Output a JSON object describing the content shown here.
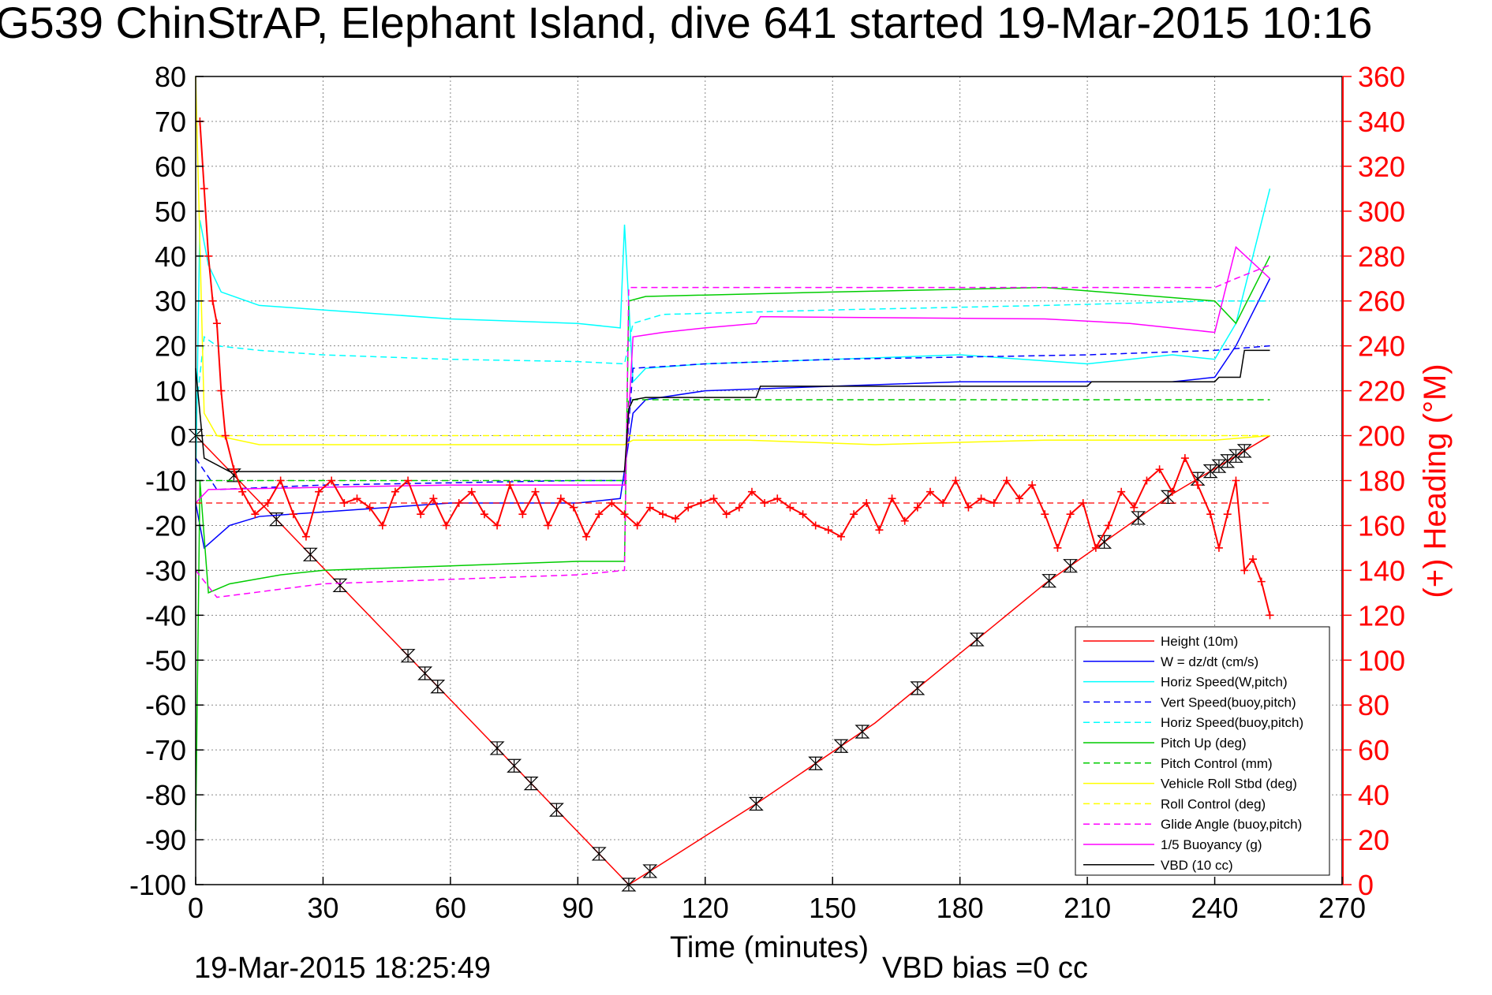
{
  "chart_data": {
    "type": "line",
    "title": "G539 ChinStrAP, Elephant Island, dive 641 started 19-Mar-2015 10:16",
    "xlabel": "Time (minutes)",
    "ylabel_right": "(+) Heading (°M)",
    "footer_left": "19-Mar-2015 18:25:49",
    "footer_right": "VBD bias =0 cc",
    "xlim": [
      0,
      270
    ],
    "ylim_left": [
      -100,
      80
    ],
    "ylim_right": [
      0,
      360
    ],
    "x_ticks": [
      0,
      30,
      60,
      90,
      120,
      150,
      180,
      210,
      240,
      270
    ],
    "y_ticks_left": [
      80,
      70,
      60,
      50,
      40,
      30,
      20,
      10,
      0,
      -10,
      -20,
      -30,
      -40,
      -50,
      -60,
      -70,
      -80,
      -90,
      -100
    ],
    "y_ticks_right": [
      360,
      340,
      320,
      300,
      280,
      260,
      240,
      220,
      200,
      180,
      160,
      140,
      120,
      100,
      80,
      60,
      40,
      20,
      0
    ],
    "grid": true,
    "legend_position": "lower-right",
    "colors": {
      "right_axis": "#ff0000"
    },
    "series": [
      {
        "name": "Height (10m)",
        "color": "#ff0000",
        "dash": false,
        "x": [
          0,
          102,
          112,
          132,
          160,
          200,
          230,
          253
        ],
        "y": [
          0,
          -100,
          -94,
          -82,
          -64,
          -33,
          -13,
          0
        ],
        "markers_x": [
          0,
          9,
          19,
          27,
          34,
          50,
          54,
          57,
          71,
          75,
          79,
          85,
          95,
          102,
          107,
          132,
          146,
          152,
          157,
          170,
          184,
          201,
          206,
          214,
          222,
          229,
          236,
          239,
          241,
          243,
          245,
          247
        ]
      },
      {
        "name": "W = dz/dt (cm/s)",
        "color": "#0000ff",
        "dash": false,
        "x": [
          0,
          2,
          8,
          15,
          30,
          60,
          90,
          100,
          103,
          106,
          120,
          150,
          180,
          210,
          230,
          240,
          245,
          253
        ],
        "y": [
          -15,
          -25,
          -20,
          -18,
          -17,
          -15,
          -15,
          -14,
          5,
          8,
          10,
          11,
          12,
          12,
          12,
          13,
          20,
          35
        ]
      },
      {
        "name": "Horiz Speed(W,pitch)",
        "color": "#00ffff",
        "dash": false,
        "x": [
          0,
          1,
          3,
          6,
          15,
          30,
          60,
          90,
          100,
          101,
          103,
          106,
          120,
          150,
          180,
          210,
          230,
          240,
          245,
          253
        ],
        "y": [
          -10,
          48,
          38,
          32,
          29,
          28,
          26,
          25,
          24,
          47,
          12,
          15,
          16,
          17,
          18,
          16,
          18,
          17,
          25,
          55
        ]
      },
      {
        "name": "Vert Speed(buoy,pitch)",
        "color": "#0000ff",
        "dash": true,
        "x": [
          0,
          5,
          30,
          60,
          90,
          101,
          103,
          120,
          150,
          210,
          240,
          253
        ],
        "y": [
          -5,
          -12,
          -11,
          -10.5,
          -10,
          -10,
          15,
          16,
          17,
          18,
          19,
          20
        ]
      },
      {
        "name": "Horiz Speed(buoy,pitch)",
        "color": "#00ffff",
        "dash": true,
        "x": [
          0,
          2,
          5,
          15,
          30,
          60,
          90,
          101,
          103,
          110,
          150,
          200,
          240,
          253
        ],
        "y": [
          5,
          22,
          20,
          19,
          18,
          17,
          16.5,
          16,
          25,
          27,
          28,
          29,
          30,
          30
        ]
      },
      {
        "name": "Pitch Up (deg)",
        "color": "#00cc00",
        "dash": false,
        "x": [
          0,
          1,
          3,
          8,
          20,
          30,
          60,
          90,
          101,
          102,
          106,
          150,
          200,
          240,
          245,
          253
        ],
        "y": [
          -88,
          -10,
          -35,
          -33,
          -31,
          -30,
          -29,
          -28,
          -28,
          30,
          31,
          32,
          33,
          30,
          25,
          40
        ]
      },
      {
        "name": "Pitch Control (mm)",
        "color": "#00cc00",
        "dash": true,
        "x": [
          0,
          101,
          102,
          253
        ],
        "y": [
          -10,
          -10,
          8,
          8
        ]
      },
      {
        "name": "Vehicle Roll Stbd (deg)",
        "color": "#ffff00",
        "dash": false,
        "x": [
          0,
          2,
          5,
          15,
          30,
          60,
          90,
          101,
          103,
          130,
          160,
          200,
          240,
          253
        ],
        "y": [
          80,
          5,
          0,
          -2,
          -2,
          -2,
          -2,
          -2,
          -1,
          -1,
          -2,
          -1,
          -1,
          0
        ]
      },
      {
        "name": "Roll Control (deg)",
        "color": "#ffff00",
        "dash": true,
        "x": [
          0,
          253
        ],
        "y": [
          0,
          0
        ]
      },
      {
        "name": "Glide Angle (buoy,pitch)",
        "color": "#ff00ff",
        "dash": true,
        "x": [
          0,
          5,
          30,
          60,
          90,
          101,
          102,
          150,
          200,
          240,
          245,
          253
        ],
        "y": [
          -30,
          -36,
          -33,
          -32,
          -31,
          -30,
          33,
          33,
          33,
          33,
          35,
          38
        ]
      },
      {
        "name": "1/5 Buoyancy (g)",
        "color": "#ff00ff",
        "dash": false,
        "x": [
          0,
          3,
          30,
          60,
          90,
          101,
          102,
          103,
          110,
          120,
          132,
          133,
          200,
          220,
          240,
          245,
          253
        ],
        "y": [
          -15,
          -12,
          -11.5,
          -11,
          -11,
          -11,
          5,
          22,
          23,
          24,
          25,
          26.5,
          26,
          25,
          23,
          42,
          35
        ]
      },
      {
        "name": "VBD (10 cc)",
        "color": "#000000",
        "dash": false,
        "x": [
          0,
          2,
          8,
          101,
          102,
          103,
          106,
          132,
          133,
          210,
          211,
          240,
          241,
          246,
          247,
          253
        ],
        "y": [
          15,
          -5,
          -8,
          -8,
          6,
          8,
          8.5,
          8.5,
          11,
          11,
          12,
          12,
          13,
          13,
          19,
          19
        ]
      }
    ],
    "heading": {
      "name": "Heading",
      "color": "#ff0000",
      "marker": "+",
      "axis": "right",
      "reference": 170,
      "x": [
        1,
        2,
        3,
        4,
        5,
        6,
        7,
        9,
        11,
        14,
        17,
        20,
        23,
        26,
        29,
        32,
        35,
        38,
        41,
        44,
        47,
        50,
        53,
        56,
        59,
        62,
        65,
        68,
        71,
        74,
        77,
        80,
        83,
        86,
        89,
        92,
        95,
        98,
        101,
        104,
        107,
        110,
        113,
        116,
        119,
        122,
        125,
        128,
        131,
        134,
        137,
        140,
        143,
        146,
        149,
        152,
        155,
        158,
        161,
        164,
        167,
        170,
        173,
        176,
        179,
        182,
        185,
        188,
        191,
        194,
        197,
        200,
        203,
        206,
        209,
        212,
        215,
        218,
        221,
        224,
        227,
        230,
        233,
        236,
        239,
        241,
        243,
        245,
        247,
        249,
        251,
        253
      ],
      "y": [
        340,
        310,
        280,
        260,
        250,
        220,
        200,
        185,
        175,
        165,
        170,
        180,
        165,
        155,
        175,
        180,
        170,
        172,
        168,
        160,
        175,
        180,
        165,
        172,
        160,
        170,
        175,
        165,
        160,
        178,
        165,
        175,
        160,
        172,
        168,
        155,
        165,
        170,
        165,
        160,
        168,
        165,
        163,
        168,
        170,
        172,
        165,
        168,
        175,
        170,
        172,
        168,
        165,
        160,
        158,
        155,
        165,
        170,
        158,
        172,
        162,
        168,
        175,
        170,
        180,
        168,
        172,
        170,
        180,
        172,
        178,
        165,
        150,
        165,
        170,
        150,
        160,
        175,
        168,
        180,
        185,
        175,
        190,
        178,
        165,
        150,
        165,
        180,
        140,
        145,
        135,
        120
      ]
    }
  },
  "legend": [
    "Height (10m)",
    "W = dz/dt (cm/s)",
    "Horiz Speed(W,pitch)",
    "Vert Speed(buoy,pitch)",
    "Horiz Speed(buoy,pitch)",
    "Pitch Up (deg)",
    "Pitch Control (mm)",
    "Vehicle Roll Stbd (deg)",
    "Roll Control (deg)",
    "Glide Angle (buoy,pitch)",
    "1/5 Buoyancy (g)",
    "VBD (10 cc)"
  ]
}
